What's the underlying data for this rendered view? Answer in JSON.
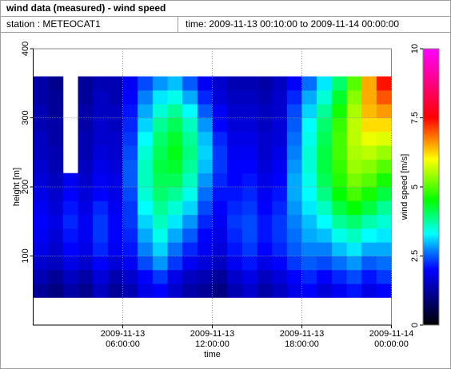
{
  "header": {
    "title": "wind data (measured) - wind speed",
    "station": "station : METEOCAT1",
    "time": "time: 2009-11-13 00:10:00 to 2009-11-14 00:00:00"
  },
  "chart_data": {
    "type": "heatmap",
    "xlabel": "time",
    "ylabel": "height [m]",
    "colorbar_label": "wind speed [m/s]",
    "xlim": [
      0,
      24
    ],
    "ylim": [
      0,
      400
    ],
    "xticks": [
      {
        "value": 6,
        "label": "2009-11-13\n06:00:00"
      },
      {
        "value": 12,
        "label": "2009-11-13\n12:00:00"
      },
      {
        "value": 18,
        "label": "2009-11-13\n18:00:00"
      },
      {
        "value": 24,
        "label": "2009-11-14\n00:00:00"
      }
    ],
    "yticks": [
      100,
      200,
      300,
      400
    ],
    "clim": [
      0,
      10
    ],
    "cticks": [
      0,
      2.5,
      5,
      7.5,
      10
    ],
    "colorscale": [
      [
        0,
        "#000000"
      ],
      [
        1,
        "#000080"
      ],
      [
        2,
        "#0000ff"
      ],
      [
        2.7,
        "#0080ff"
      ],
      [
        3.3,
        "#00ffff"
      ],
      [
        4.5,
        "#00ff00"
      ],
      [
        6,
        "#ffff00"
      ],
      [
        7.5,
        "#ff0000"
      ],
      [
        10,
        "#ff00ff"
      ]
    ],
    "grid": true,
    "x_edges": [
      0,
      1,
      2,
      3,
      4,
      5,
      6,
      7,
      8,
      9,
      10,
      11,
      12,
      13,
      14,
      15,
      16,
      17,
      18,
      19,
      20,
      21,
      22,
      23,
      24
    ],
    "y_edges": [
      40,
      60,
      80,
      100,
      120,
      140,
      160,
      180,
      200,
      220,
      240,
      260,
      280,
      300,
      320,
      340,
      360
    ],
    "values": [
      [
        1.2,
        1.0,
        1.3,
        1.1,
        1.5,
        1.2,
        1.4,
        1.8,
        2.0,
        1.6,
        1.3,
        1.2,
        1.0,
        1.4,
        1.6,
        1.3,
        1.5,
        1.8,
        2.0,
        1.7,
        1.9,
        2.1,
        1.8,
        2.0
      ],
      [
        1.4,
        1.2,
        1.5,
        1.3,
        1.7,
        1.4,
        1.6,
        2.0,
        2.3,
        1.8,
        1.5,
        1.4,
        1.2,
        1.6,
        1.8,
        1.5,
        1.7,
        2.0,
        2.2,
        2.0,
        2.2,
        2.4,
        2.1,
        2.3
      ],
      [
        1.6,
        1.5,
        1.8,
        1.6,
        2.0,
        1.7,
        1.9,
        2.4,
        2.8,
        2.3,
        1.9,
        1.7,
        1.5,
        1.9,
        2.1,
        1.8,
        2.0,
        2.3,
        2.5,
        2.4,
        2.6,
        2.8,
        2.5,
        2.6
      ],
      [
        1.8,
        1.6,
        2.0,
        1.8,
        2.2,
        1.9,
        2.1,
        2.7,
        3.1,
        2.6,
        2.2,
        1.9,
        1.7,
        2.1,
        2.3,
        2.0,
        2.2,
        2.5,
        2.7,
        2.7,
        3.0,
        3.2,
        2.9,
        2.9
      ],
      [
        1.9,
        1.7,
        2.1,
        1.9,
        2.3,
        2.0,
        2.2,
        2.9,
        3.4,
        2.9,
        2.5,
        2.0,
        1.8,
        2.2,
        2.4,
        2.1,
        2.3,
        2.6,
        2.9,
        3.0,
        3.4,
        3.6,
        3.3,
        3.2
      ],
      [
        2.0,
        1.8,
        2.2,
        1.9,
        2.3,
        2.0,
        2.3,
        3.1,
        3.6,
        3.2,
        2.8,
        2.2,
        1.9,
        2.3,
        2.4,
        2.1,
        2.3,
        2.7,
        3.0,
        3.3,
        3.8,
        4.0,
        3.7,
        3.5
      ],
      [
        1.9,
        1.7,
        2.1,
        1.8,
        2.2,
        1.9,
        2.3,
        3.3,
        3.8,
        3.5,
        3.1,
        2.4,
        2.0,
        2.2,
        2.3,
        2.0,
        2.2,
        2.8,
        3.2,
        3.6,
        4.2,
        4.5,
        4.2,
        3.8
      ],
      [
        1.8,
        1.6,
        2.0,
        1.7,
        2.0,
        1.8,
        2.4,
        3.5,
        4.0,
        3.8,
        3.4,
        2.6,
        2.1,
        2.1,
        2.2,
        1.9,
        2.1,
        2.9,
        3.3,
        3.9,
        4.5,
        4.9,
        4.6,
        4.2
      ],
      [
        1.7,
        1.5,
        1.9,
        1.6,
        1.9,
        1.8,
        2.5,
        3.6,
        4.1,
        4.1,
        3.6,
        2.8,
        2.2,
        2.0,
        2.1,
        1.8,
        2.0,
        2.9,
        3.4,
        4.1,
        4.7,
        5.2,
        5.0,
        4.6
      ],
      [
        1.6,
        1.4,
        null,
        1.5,
        1.8,
        1.7,
        2.5,
        3.6,
        4.2,
        4.3,
        3.8,
        3.0,
        2.3,
        2.0,
        2.0,
        1.7,
        1.9,
        2.8,
        3.5,
        4.2,
        4.8,
        5.4,
        5.3,
        5.0
      ],
      [
        1.5,
        1.4,
        null,
        1.4,
        1.7,
        1.6,
        2.4,
        3.5,
        4.1,
        4.4,
        3.9,
        3.1,
        2.3,
        1.9,
        1.9,
        1.6,
        1.8,
        2.7,
        3.5,
        4.2,
        4.9,
        5.5,
        5.6,
        5.4
      ],
      [
        1.5,
        1.3,
        null,
        1.4,
        1.6,
        1.6,
        2.3,
        3.3,
        4.0,
        4.3,
        3.8,
        3.0,
        2.2,
        1.8,
        1.8,
        1.6,
        1.7,
        2.6,
        3.4,
        4.1,
        4.9,
        5.6,
        5.9,
        5.8
      ],
      [
        1.4,
        1.3,
        null,
        1.3,
        1.6,
        1.5,
        2.2,
        3.1,
        3.8,
        4.1,
        3.6,
        2.8,
        2.0,
        1.7,
        1.7,
        1.5,
        1.7,
        2.5,
        3.3,
        4.0,
        4.8,
        5.6,
        6.2,
        6.2
      ],
      [
        1.4,
        1.2,
        null,
        1.3,
        1.5,
        1.5,
        2.1,
        2.9,
        3.5,
        3.8,
        3.3,
        2.5,
        1.9,
        1.6,
        1.6,
        1.5,
        1.6,
        2.4,
        3.1,
        3.8,
        4.6,
        5.5,
        6.4,
        6.6
      ],
      [
        1.3,
        1.2,
        null,
        1.2,
        1.5,
        1.4,
        2.0,
        2.7,
        3.2,
        3.4,
        2.9,
        2.2,
        1.7,
        1.5,
        1.5,
        1.4,
        1.6,
        2.2,
        2.9,
        3.5,
        4.3,
        5.3,
        6.5,
        7.0
      ],
      [
        1.3,
        1.1,
        null,
        1.2,
        1.4,
        1.4,
        1.9,
        2.4,
        2.8,
        3.0,
        2.5,
        1.9,
        1.6,
        1.4,
        1.4,
        1.3,
        1.5,
        2.0,
        2.6,
        3.2,
        4.0,
        5.0,
        6.5,
        7.4
      ]
    ]
  }
}
